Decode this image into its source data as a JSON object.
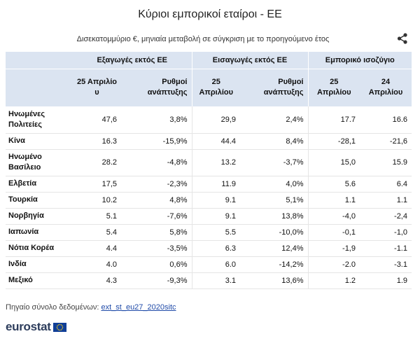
{
  "title": "Κύριοι εμπορικοί εταίροι - ΕΕ",
  "subtitle": "Δισεκατομμύριο €, μηνιαία μεταβολή σε σύγκριση με το προηγούμενο έτος",
  "icons": {
    "share": "share-icon",
    "flag": "eu-flag-icon"
  },
  "table": {
    "groups": [
      "Εξαγωγές εκτός ΕΕ",
      "Εισαγωγές εκτός ΕΕ",
      "Εμπορικό ισοζύγιο"
    ],
    "sub_headers": {
      "exp_month": "25 Απριλίο υ",
      "exp_growth": "Ρυθμοί ανάπτυξης",
      "imp_month": "25 Απριλίου",
      "imp_growth": "Ρυθμοί ανάπτυξης",
      "bal_current": "25 Απριλίου",
      "bal_previous": "24 Απριλίου"
    },
    "rows": [
      {
        "name": "Ηνωμένες Πολιτείες",
        "exp": "47,6",
        "exp_g": "3,8%",
        "imp": "29,9",
        "imp_g": "2,4%",
        "bal": "17.7",
        "bal_prev": "16.6"
      },
      {
        "name": "Κίνα",
        "exp": "16.3",
        "exp_g": "-15,9%",
        "imp": "44.4",
        "imp_g": "8,4%",
        "bal": "-28,1",
        "bal_prev": "-21,6"
      },
      {
        "name": "Ηνωμένο Βασίλειο",
        "exp": "28.2",
        "exp_g": "-4,8%",
        "imp": "13.2",
        "imp_g": "-3,7%",
        "bal": "15,0",
        "bal_prev": "15.9"
      },
      {
        "name": "Ελβετία",
        "exp": "17,5",
        "exp_g": "-2,3%",
        "imp": "11.9",
        "imp_g": "4,0%",
        "bal": "5.6",
        "bal_prev": "6.4"
      },
      {
        "name": "Τουρκία",
        "exp": "10.2",
        "exp_g": "4,8%",
        "imp": "9.1",
        "imp_g": "5,1%",
        "bal": "1.1",
        "bal_prev": "1.1"
      },
      {
        "name": "Νορβηγία",
        "exp": "5.1",
        "exp_g": "-7,6%",
        "imp": "9.1",
        "imp_g": "13,8%",
        "bal": "-4,0",
        "bal_prev": "-2,4"
      },
      {
        "name": "Ιαπωνία",
        "exp": "5.4",
        "exp_g": "5,8%",
        "imp": "5.5",
        "imp_g": "-10,0%",
        "bal": "-0,1",
        "bal_prev": "-1,0"
      },
      {
        "name": "Νότια Κορέα",
        "exp": "4.4",
        "exp_g": "-3,5%",
        "imp": "6.3",
        "imp_g": "12,4%",
        "bal": "-1,9",
        "bal_prev": "-1.1"
      },
      {
        "name": "Ινδία",
        "exp": "4.0",
        "exp_g": "0,6%",
        "imp": "6.0",
        "imp_g": "-14,2%",
        "bal": "-2.0",
        "bal_prev": "-3.1"
      },
      {
        "name": "Μεξικό",
        "exp": "4.3",
        "exp_g": "-9,3%",
        "imp": "3.1",
        "imp_g": "13,6%",
        "bal": "1.2",
        "bal_prev": "1.9"
      }
    ]
  },
  "source": {
    "label": "Πηγαίο σύνολο δεδομένων:",
    "link": "ext_st_eu27_2020sitc"
  },
  "logo": "eurostat"
}
